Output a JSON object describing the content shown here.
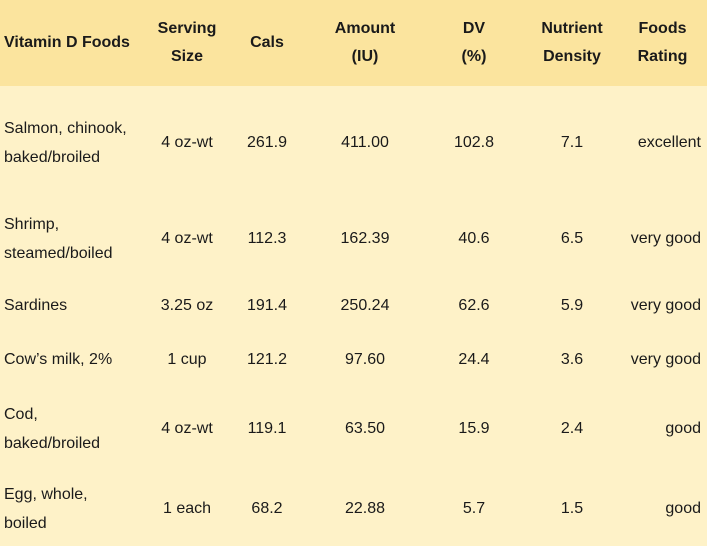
{
  "table": {
    "headers": [
      [
        "Vitamin D Foods"
      ],
      [
        "Serving",
        "Size"
      ],
      [
        "Cals"
      ],
      [
        "Amount",
        "(IU)"
      ],
      [
        "DV",
        "(%)"
      ],
      [
        "Nutrient",
        "Density"
      ],
      [
        "Foods",
        "Rating"
      ]
    ],
    "rows": [
      {
        "food": [
          "Salmon, chinook,",
          "baked/broiled"
        ],
        "serving": "4 oz-wt",
        "cals": "261.9",
        "amount": "411.00",
        "dv": "102.8",
        "density": "7.1",
        "rating": "excellent"
      },
      {
        "food": [
          "Shrimp,",
          "steamed/boiled"
        ],
        "serving": "4 oz-wt",
        "cals": "112.3",
        "amount": "162.39",
        "dv": "40.6",
        "density": "6.5",
        "rating": "very good"
      },
      {
        "food": [
          "Sardines"
        ],
        "serving": "3.25 oz",
        "cals": "191.4",
        "amount": "250.24",
        "dv": "62.6",
        "density": "5.9",
        "rating": "very good"
      },
      {
        "food": [
          "Cow’s milk, 2%"
        ],
        "serving": "1 cup",
        "cals": "121.2",
        "amount": "97.60",
        "dv": "24.4",
        "density": "3.6",
        "rating": "very good"
      },
      {
        "food": [
          "Cod,",
          "baked/broiled"
        ],
        "serving": "4 oz-wt",
        "cals": "119.1",
        "amount": "63.50",
        "dv": "15.9",
        "density": "2.4",
        "rating": "good"
      },
      {
        "food": [
          "Egg, whole,",
          "boiled"
        ],
        "serving": "1 each",
        "cals": "68.2",
        "amount": "22.88",
        "dv": "5.7",
        "density": "1.5",
        "rating": "good"
      }
    ]
  }
}
